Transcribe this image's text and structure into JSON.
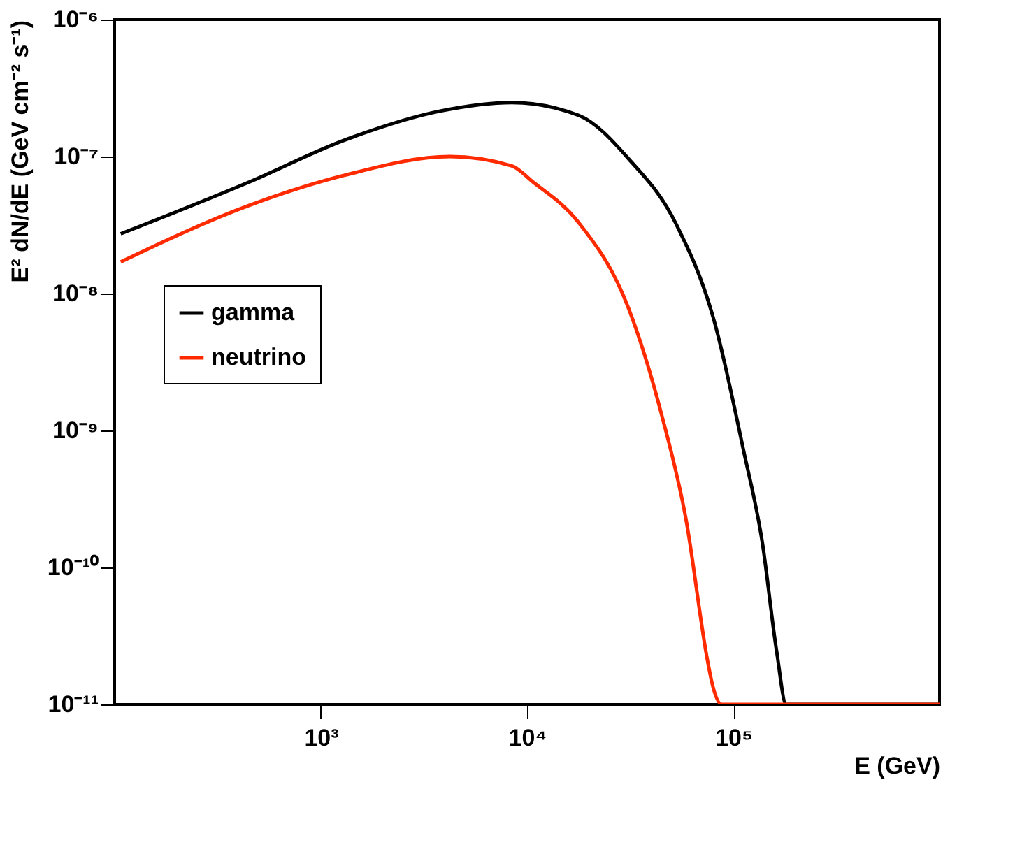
{
  "chart_data": {
    "type": "line",
    "xlabel": "E (GeV)",
    "ylabel": "E² dN/dE (GeV cm⁻² s⁻¹)",
    "log": "xy",
    "grid": false,
    "legend": "left",
    "marker": "none",
    "line_style": "solid",
    "xlim": [
      100,
      1000000
    ],
    "ylim": [
      1e-11,
      1e-06
    ],
    "xticks": [
      {
        "value": 1000,
        "label": "10³"
      },
      {
        "value": 10000,
        "label": "10⁴"
      },
      {
        "value": 100000,
        "label": "10⁵"
      }
    ],
    "yticks": [
      {
        "value": 1e-11,
        "label": "10⁻¹¹"
      },
      {
        "value": 1e-10,
        "label": "10⁻¹⁰"
      },
      {
        "value": 1e-09,
        "label": "10⁻⁹"
      },
      {
        "value": 1e-08,
        "label": "10⁻⁸"
      },
      {
        "value": 1e-07,
        "label": "10⁻⁷"
      },
      {
        "value": 1e-06,
        "label": "10⁻⁶"
      }
    ],
    "series": [
      {
        "name": "gamma",
        "color": "#000000",
        "x": [
          107,
          447,
          1306,
          3793,
          8433,
          17780,
          31120,
          52970,
          81280,
          111900,
          138400,
          162200,
          180700,
          1000000
        ],
        "values": [
          2.73e-08,
          6.49e-08,
          1.32e-07,
          2.15e-07,
          2.48e-07,
          2e-07,
          9.6e-08,
          3.19e-08,
          6.1e-09,
          7.26e-10,
          1.51e-10,
          2.45e-11,
          1e-11,
          1e-11
        ]
      },
      {
        "name": "neutrino",
        "color": "#ff2a00",
        "x": [
          107,
          447,
          1306,
          4217,
          8433,
          10720,
          17780,
          31120,
          45190,
          59020,
          75000,
          79070,
          87900,
          1000000
        ],
        "values": [
          1.7e-08,
          4.39e-08,
          7.31e-08,
          1e-07,
          8.55e-08,
          6.49e-08,
          3.3e-08,
          7.73e-09,
          1.26e-09,
          2.23e-10,
          2.09e-11,
          1.41e-11,
          1e-11,
          1e-11
        ]
      }
    ]
  }
}
